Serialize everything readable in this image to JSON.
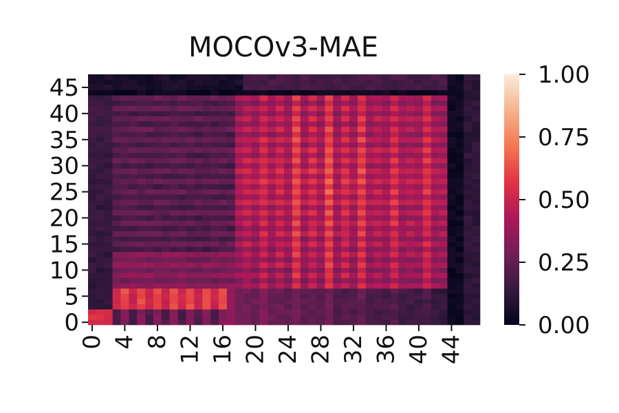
{
  "chart_data": {
    "type": "heatmap",
    "title": "MOCOv3-MAE",
    "xlabel": "",
    "ylabel": "",
    "xlim": [
      0,
      48
    ],
    "ylim": [
      0,
      48
    ],
    "xticks": [
      "0",
      "4",
      "8",
      "12",
      "16",
      "20",
      "24",
      "28",
      "32",
      "36",
      "40",
      "44"
    ],
    "yticks": [
      "0",
      "5",
      "10",
      "15",
      "20",
      "25",
      "30",
      "35",
      "40",
      "45"
    ],
    "colorbar": {
      "min": 0.0,
      "max": 1.0,
      "ticks": [
        "0.00",
        "0.25",
        "0.50",
        "0.75",
        "1.00"
      ],
      "colormap": "rocket",
      "stops": [
        "#03051a",
        "#35193e",
        "#701f57",
        "#ad1759",
        "#e13342",
        "#f37651",
        "#f6b48f",
        "#faebdd"
      ]
    },
    "grid": false,
    "values_note_rows": "row index 0 = y 0 (bottom), each row lists x 0..47",
    "values": []
  }
}
